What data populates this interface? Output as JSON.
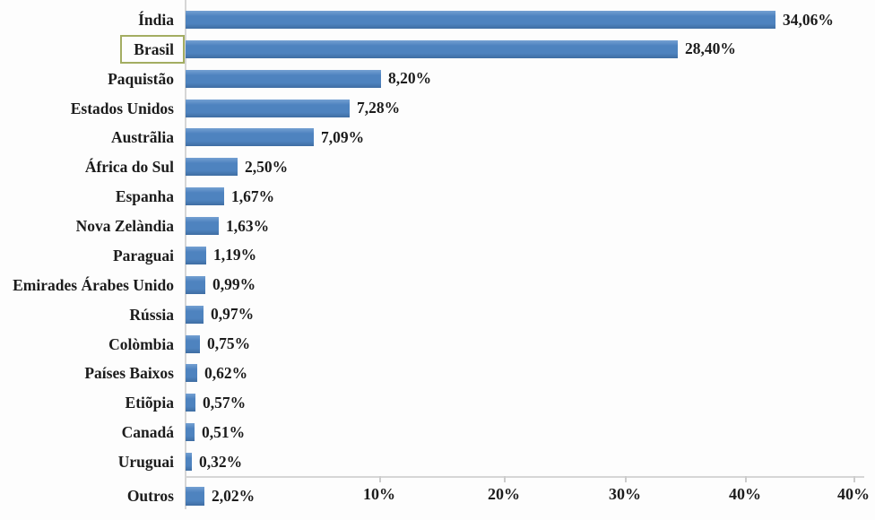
{
  "chart_data": {
    "type": "bar",
    "orientation": "horizontal",
    "title": "",
    "xlabel": "",
    "ylabel": "",
    "categories": [
      "Índia",
      "Brasil",
      "Paquistão",
      "Estados Unidos",
      "Austrãlia",
      "África do Sul",
      "Espanha",
      "Nova Zelàndia",
      "Paraguai",
      "Emirades Árabes Unido",
      "Rússia",
      "Colòmbia",
      "Países Baixos",
      "Etiõpia",
      "Canadá",
      "Uruguai",
      "Outros"
    ],
    "values": [
      34.06,
      28.4,
      8.2,
      7.28,
      7.09,
      2.5,
      1.67,
      1.63,
      1.19,
      0.99,
      0.97,
      0.75,
      0.62,
      0.57,
      0.51,
      0.32,
      2.02
    ],
    "value_labels": [
      "34,06%",
      "28,40%",
      "8,20%",
      "7,28%",
      "7,09%",
      "2,50%",
      "1,67%",
      "1,63%",
      "1,19%",
      "0,99%",
      "0,97%",
      "0,75%",
      "0,62%",
      "0,57%",
      "0,51%",
      "0,32%",
      "2,02%"
    ],
    "x_tick_labels": [
      "10%",
      "20%",
      "30%",
      "40%",
      "40%"
    ],
    "xlim": [
      0,
      40
    ],
    "grid": false,
    "legend": false,
    "highlighted_category": "Brasil",
    "highlighted_index": 1,
    "separator_before_last_category": true,
    "colors": {
      "bar": "#4e83bf",
      "highlight_box_border": "#a3ad62",
      "axis_line": "#d6d6d6",
      "text": "#1c1c1c",
      "background": "#fdfdfd"
    }
  }
}
